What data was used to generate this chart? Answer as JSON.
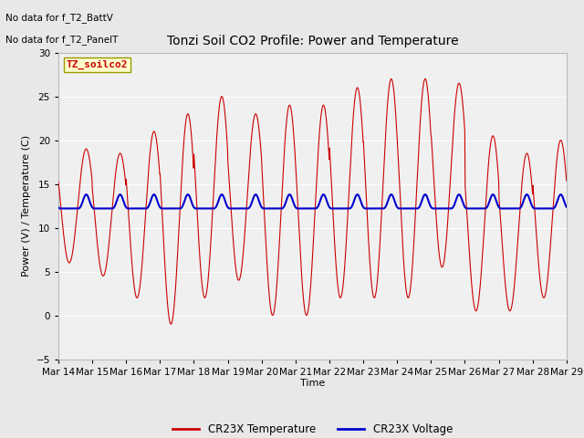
{
  "title": "Tonzi Soil CO2 Profile: Power and Temperature",
  "ylabel": "Power (V) / Temperature (C)",
  "xlabel": "Time",
  "ylim": [
    -5,
    30
  ],
  "yticks": [
    -5,
    0,
    5,
    10,
    15,
    20,
    25,
    30
  ],
  "x_labels": [
    "Mar 14",
    "Mar 15",
    "Mar 16",
    "Mar 17",
    "Mar 18",
    "Mar 19",
    "Mar 20",
    "Mar 21",
    "Mar 22",
    "Mar 23",
    "Mar 24",
    "Mar 25",
    "Mar 26",
    "Mar 27",
    "Mar 28",
    "Mar 29"
  ],
  "no_data_text1": "No data for f_T2_BattV",
  "no_data_text2": "No data for f_T2_PanelT",
  "legend_box_label": "TZ_soilco2",
  "legend_items": [
    "CR23X Temperature",
    "CR23X Voltage"
  ],
  "legend_colors": [
    "#cc0000",
    "#0000cc"
  ],
  "temp_color": "#cc0000",
  "volt_color": "#0000cc",
  "bg_color": "#e8e8e8",
  "plot_bg": "#f0f0f0",
  "grid_color": "#ffffff",
  "figwidth": 6.4,
  "figheight": 4.8,
  "dpi": 100
}
